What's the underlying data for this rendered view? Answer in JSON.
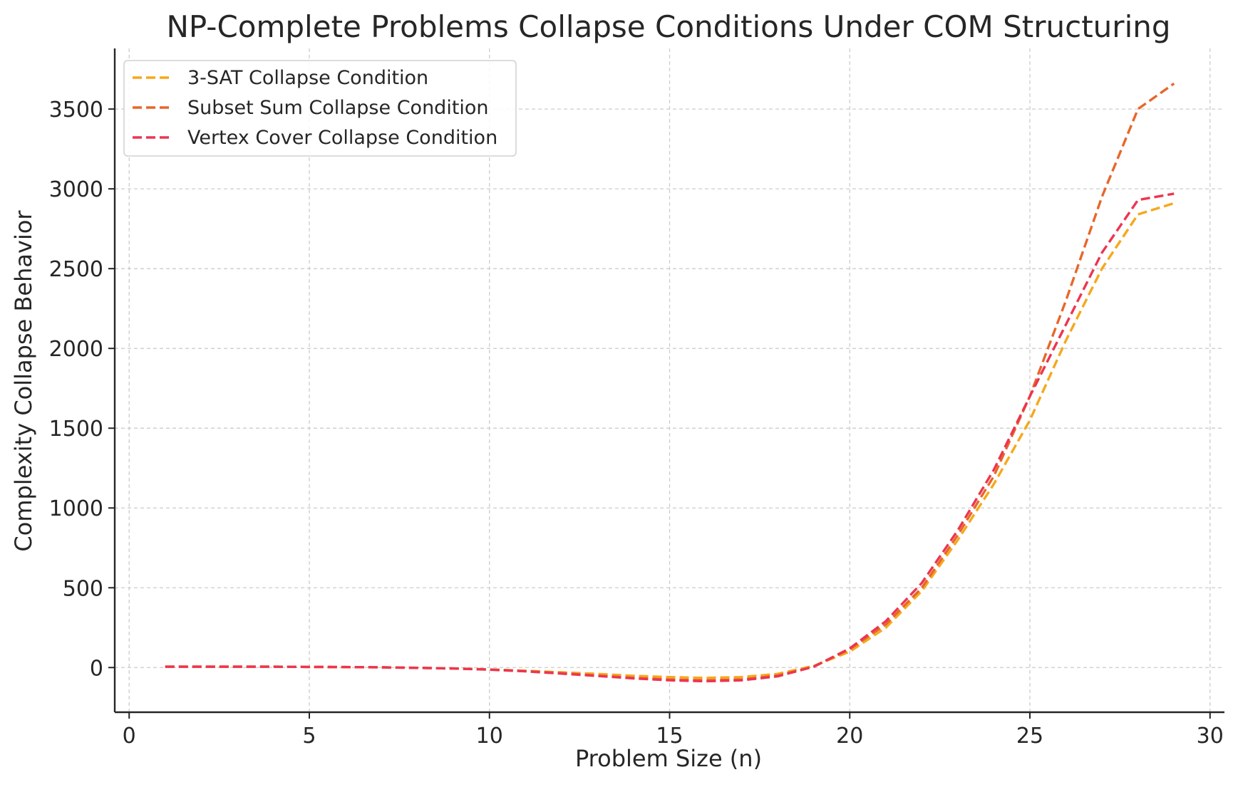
{
  "chart_data": {
    "type": "line",
    "title": "NP-Complete Problems Collapse Conditions Under COM Structuring",
    "xlabel": "Problem Size (n)",
    "ylabel": "Complexity Collapse Behavior",
    "xlim": [
      -0.4,
      30.4
    ],
    "ylim": [
      -280,
      3880
    ],
    "xticks": [
      0,
      5,
      10,
      15,
      20,
      25,
      30
    ],
    "yticks": [
      0,
      500,
      1000,
      1500,
      2000,
      2500,
      3000,
      3500
    ],
    "grid": true,
    "legend_position": "top-left",
    "line_style": "dashed",
    "x": [
      1,
      2,
      3,
      4,
      5,
      6,
      7,
      8,
      9,
      10,
      11,
      12,
      13,
      14,
      15,
      16,
      17,
      18,
      19,
      20,
      21,
      22,
      23,
      24,
      25,
      26,
      27,
      28,
      29
    ],
    "series": [
      {
        "name": "3-SAT Collapse Condition",
        "color": "#F5A81C",
        "values": [
          5,
          5,
          5,
          5,
          4,
          3,
          1,
          -2,
          -6,
          -12,
          -20,
          -30,
          -40,
          -52,
          -60,
          -65,
          -60,
          -40,
          10,
          100,
          250,
          480,
          800,
          1150,
          1550,
          2050,
          2500,
          2840,
          2910
        ]
      },
      {
        "name": "Subset Sum Collapse Condition",
        "color": "#E8662A",
        "values": [
          5,
          5,
          5,
          5,
          4,
          3,
          1,
          -2,
          -6,
          -12,
          -22,
          -35,
          -50,
          -65,
          -75,
          -80,
          -75,
          -50,
          5,
          115,
          270,
          500,
          830,
          1200,
          1700,
          2300,
          2950,
          3500,
          3660
        ]
      },
      {
        "name": "Vertex Cover Collapse Condition",
        "color": "#EC3550",
        "values": [
          5,
          5,
          5,
          5,
          4,
          3,
          1,
          -2,
          -6,
          -13,
          -24,
          -38,
          -53,
          -68,
          -80,
          -86,
          -80,
          -55,
          5,
          120,
          290,
          530,
          860,
          1240,
          1700,
          2150,
          2600,
          2930,
          2970
        ]
      }
    ]
  }
}
